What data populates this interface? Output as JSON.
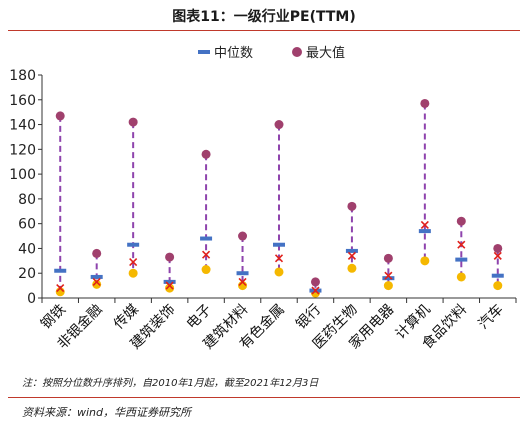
{
  "title": "图表11：一级行业PE(TTM)",
  "note": "注：按照分位数升序排列，自2010年1月起，截至2021年12月3日",
  "source": "资料来源：wind，华西证券研究所",
  "colors": {
    "median": "#4472c4",
    "max": "#a0406d",
    "dash": "#8e44ad",
    "min": "#f5b800",
    "current": "#e0201b",
    "axis": "#333333",
    "accent_rule": "#c0392b"
  },
  "chart_data": {
    "type": "scatter",
    "title": "一级行业PE(TTM)",
    "ylim": [
      0,
      180
    ],
    "yticks": [
      0,
      20,
      40,
      60,
      80,
      100,
      120,
      140,
      160,
      180
    ],
    "legend_position": "top-center",
    "categories": [
      "钢铁",
      "非银金融",
      "传媒",
      "建筑装饰",
      "电子",
      "建筑材料",
      "有色金属",
      "银行",
      "医药生物",
      "家用电器",
      "计算机",
      "食品饮料",
      "汽车"
    ],
    "series": [
      {
        "name": "中位数",
        "marker": "bar",
        "values": [
          22,
          17,
          43,
          13,
          48,
          20,
          43,
          6,
          38,
          16,
          54,
          31,
          18
        ]
      },
      {
        "name": "最大值",
        "marker": "circle",
        "values": [
          147,
          36,
          142,
          33,
          116,
          50,
          140,
          13,
          74,
          32,
          157,
          62,
          40
        ]
      },
      {
        "marker": "circle-min",
        "values": [
          5,
          11,
          20,
          8,
          23,
          10,
          21,
          4,
          24,
          10,
          30,
          17,
          10
        ]
      },
      {
        "marker": "x",
        "values": [
          8,
          13,
          29,
          10,
          35,
          13,
          32,
          6,
          34,
          18,
          59,
          43,
          34
        ]
      }
    ]
  }
}
